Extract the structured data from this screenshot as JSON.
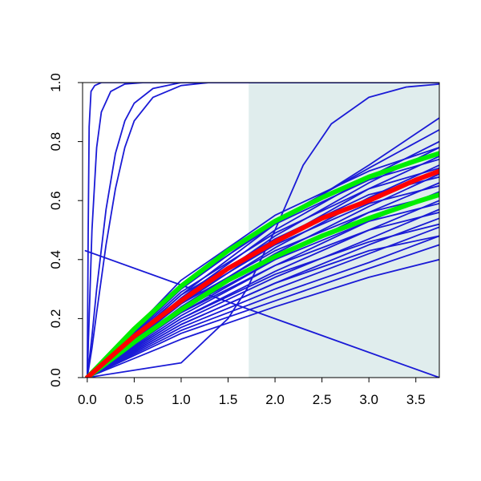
{
  "chart_data": {
    "type": "line",
    "title": "",
    "xlabel": "",
    "ylabel": "",
    "xlim": [
      -0.05,
      3.75
    ],
    "ylim": [
      0.0,
      1.0
    ],
    "x_ticks": [
      0.0,
      0.5,
      1.0,
      1.5,
      2.0,
      2.5,
      3.0,
      3.5
    ],
    "x_tick_labels": [
      "0.0",
      "0.5",
      "1.0",
      "1.5",
      "2.0",
      "2.5",
      "3.0",
      "3.5"
    ],
    "y_ticks": [
      0.0,
      0.2,
      0.4,
      0.6,
      0.8,
      1.0
    ],
    "y_tick_labels": [
      "0.0",
      "0.2",
      "0.4",
      "0.6",
      "0.8",
      "1.0"
    ],
    "grid": false,
    "legend": "none",
    "shaded_region": {
      "x_start": 1.72,
      "x_end": 3.75,
      "color": "#e0eded"
    },
    "colors": {
      "curves": "#1a1ad6",
      "band": "#00ee00",
      "median": "#ff0000",
      "axis": "#000000"
    },
    "band_series": [
      {
        "x": [
          0.0,
          0.5,
          1.0,
          1.5,
          2.0,
          2.5,
          3.0,
          3.5,
          3.75
        ],
        "values": [
          0.0,
          0.165,
          0.31,
          0.43,
          0.53,
          0.61,
          0.68,
          0.735,
          0.76
        ]
      },
      {
        "x": [
          0.0,
          0.5,
          1.0,
          1.5,
          2.0,
          2.5,
          3.0,
          3.5,
          3.75
        ],
        "values": [
          0.0,
          0.12,
          0.23,
          0.33,
          0.41,
          0.48,
          0.54,
          0.595,
          0.62
        ]
      }
    ],
    "median_series": {
      "x": [
        0.0,
        0.5,
        1.0,
        1.5,
        2.0,
        2.5,
        3.0,
        3.5,
        3.75
      ],
      "values": [
        0.0,
        0.14,
        0.26,
        0.37,
        0.46,
        0.54,
        0.6,
        0.67,
        0.7
      ]
    },
    "curve_series": [
      {
        "x": [
          0.0,
          0.01,
          0.02,
          0.04,
          0.08,
          0.15,
          0.3,
          3.75
        ],
        "values": [
          0.0,
          0.5,
          0.85,
          0.97,
          0.99,
          1.0,
          1.0,
          1.0
        ]
      },
      {
        "x": [
          0.0,
          0.02,
          0.05,
          0.1,
          0.15,
          0.25,
          0.4,
          0.6,
          3.75
        ],
        "values": [
          0.0,
          0.2,
          0.5,
          0.78,
          0.9,
          0.97,
          0.995,
          1.0,
          1.0
        ]
      },
      {
        "x": [
          0.0,
          0.05,
          0.1,
          0.2,
          0.3,
          0.4,
          0.5,
          0.7,
          1.0,
          3.75
        ],
        "values": [
          0.0,
          0.14,
          0.3,
          0.57,
          0.76,
          0.87,
          0.93,
          0.98,
          1.0,
          1.0
        ]
      },
      {
        "x": [
          0.0,
          0.05,
          0.1,
          0.2,
          0.3,
          0.4,
          0.5,
          0.7,
          1.0,
          1.3,
          3.75
        ],
        "values": [
          0.0,
          0.1,
          0.22,
          0.45,
          0.64,
          0.78,
          0.87,
          0.95,
          0.99,
          1.0,
          1.0
        ]
      },
      {
        "x": [
          0.0,
          1.0,
          1.5,
          1.7,
          2.0,
          2.3,
          2.6,
          3.0,
          3.4,
          3.75
        ],
        "values": [
          0.0,
          0.05,
          0.2,
          0.3,
          0.5,
          0.72,
          0.86,
          0.95,
          0.985,
          0.995
        ]
      },
      {
        "x": [
          -0.02,
          3.75
        ],
        "values": [
          0.43,
          0.0
        ]
      },
      {
        "x": [
          0.0,
          1.0,
          2.0,
          3.0,
          3.75
        ],
        "values": [
          0.0,
          0.28,
          0.52,
          0.72,
          0.88
        ]
      },
      {
        "x": [
          0.0,
          1.0,
          2.0,
          3.0,
          3.75
        ],
        "values": [
          0.0,
          0.3,
          0.53,
          0.71,
          0.84
        ]
      },
      {
        "x": [
          0.0,
          1.0,
          2.0,
          3.0,
          3.75
        ],
        "values": [
          0.0,
          0.27,
          0.5,
          0.68,
          0.8
        ]
      },
      {
        "x": [
          0.0,
          1.0,
          2.0,
          3.0,
          3.75
        ],
        "values": [
          0.0,
          0.26,
          0.48,
          0.66,
          0.78
        ]
      },
      {
        "x": [
          0.0,
          1.0,
          2.0,
          3.0,
          3.75
        ],
        "values": [
          0.0,
          0.25,
          0.46,
          0.64,
          0.75
        ]
      },
      {
        "x": [
          0.0,
          1.0,
          2.0,
          3.0,
          3.75
        ],
        "values": [
          0.0,
          0.24,
          0.44,
          0.61,
          0.72
        ]
      },
      {
        "x": [
          0.0,
          1.0,
          2.0,
          3.0,
          3.75
        ],
        "values": [
          0.0,
          0.23,
          0.42,
          0.58,
          0.69
        ]
      },
      {
        "x": [
          0.0,
          1.0,
          2.0,
          3.0,
          3.75
        ],
        "values": [
          0.0,
          0.22,
          0.4,
          0.56,
          0.66
        ]
      },
      {
        "x": [
          0.0,
          1.0,
          2.0,
          3.0,
          3.75
        ],
        "values": [
          0.0,
          0.21,
          0.38,
          0.53,
          0.63
        ]
      },
      {
        "x": [
          0.0,
          1.0,
          2.0,
          3.0,
          3.75
        ],
        "values": [
          0.0,
          0.2,
          0.36,
          0.5,
          0.6
        ]
      },
      {
        "x": [
          0.0,
          1.0,
          2.0,
          3.0,
          3.75
        ],
        "values": [
          0.0,
          0.19,
          0.34,
          0.47,
          0.57
        ]
      },
      {
        "x": [
          0.0,
          1.0,
          2.0,
          3.0,
          3.75
        ],
        "values": [
          0.0,
          0.18,
          0.32,
          0.45,
          0.54
        ]
      },
      {
        "x": [
          0.0,
          1.0,
          2.0,
          3.0,
          3.75
        ],
        "values": [
          0.0,
          0.17,
          0.3,
          0.42,
          0.51
        ]
      },
      {
        "x": [
          0.0,
          1.0,
          2.0,
          3.0,
          3.75
        ],
        "values": [
          0.0,
          0.16,
          0.28,
          0.39,
          0.48
        ]
      },
      {
        "x": [
          0.0,
          1.0,
          2.0,
          3.0,
          3.75
        ],
        "values": [
          0.0,
          0.15,
          0.26,
          0.37,
          0.45
        ]
      },
      {
        "x": [
          0.0,
          1.0,
          2.0,
          3.0,
          3.75
        ],
        "values": [
          0.0,
          0.13,
          0.24,
          0.34,
          0.4
        ]
      },
      {
        "x": [
          0.0,
          1.0,
          2.0,
          3.0,
          3.75
        ],
        "values": [
          0.0,
          0.33,
          0.55,
          0.7,
          0.78
        ]
      },
      {
        "x": [
          0.0,
          1.0,
          2.0,
          3.0,
          3.75
        ],
        "values": [
          0.0,
          0.31,
          0.52,
          0.67,
          0.74
        ]
      },
      {
        "x": [
          0.0,
          1.0,
          2.0,
          3.0,
          3.75
        ],
        "values": [
          0.0,
          0.29,
          0.49,
          0.64,
          0.71
        ]
      },
      {
        "x": [
          0.0,
          1.0,
          2.0,
          3.0,
          3.75
        ],
        "values": [
          0.0,
          0.28,
          0.47,
          0.62,
          0.68
        ]
      },
      {
        "x": [
          0.0,
          1.0,
          2.0,
          3.0,
          3.75
        ],
        "values": [
          0.0,
          0.26,
          0.45,
          0.59,
          0.65
        ]
      },
      {
        "x": [
          0.0,
          1.0,
          2.0,
          3.0,
          3.75
        ],
        "values": [
          0.0,
          0.25,
          0.43,
          0.56,
          0.62
        ]
      },
      {
        "x": [
          0.0,
          1.0,
          2.0,
          3.0,
          3.75
        ],
        "values": [
          0.0,
          0.23,
          0.4,
          0.53,
          0.59
        ]
      },
      {
        "x": [
          0.0,
          1.0,
          2.0,
          3.0,
          3.75
        ],
        "values": [
          0.0,
          0.22,
          0.38,
          0.5,
          0.56
        ]
      },
      {
        "x": [
          0.0,
          1.0,
          2.0,
          3.0,
          3.75
        ],
        "values": [
          0.0,
          0.2,
          0.35,
          0.46,
          0.52
        ]
      },
      {
        "x": [
          0.0,
          1.0,
          2.0,
          3.0,
          3.75
        ],
        "values": [
          0.0,
          0.18,
          0.32,
          0.43,
          0.48
        ]
      }
    ]
  }
}
